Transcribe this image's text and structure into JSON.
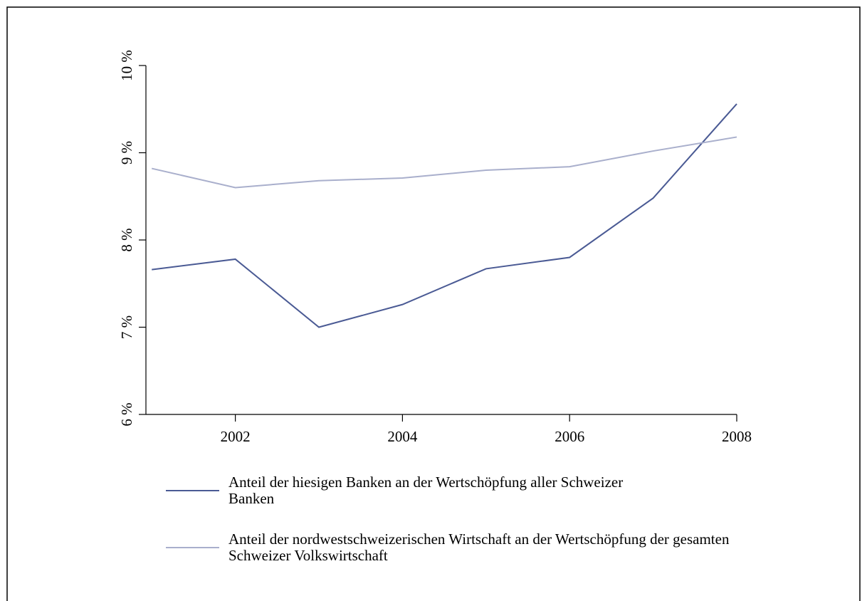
{
  "chart_data": {
    "type": "line",
    "x": [
      2001,
      2002,
      2003,
      2004,
      2005,
      2006,
      2007,
      2008
    ],
    "series": [
      {
        "name": "Anteil der hiesigen Banken an der Wertschöpfung aller Schweizer Banken",
        "color": "#4a5a94",
        "values": [
          7.66,
          7.78,
          7.0,
          7.26,
          7.67,
          7.8,
          8.48,
          9.56
        ]
      },
      {
        "name": "Anteil der nordwestschweizerischen Wirtschaft an der Wertschöpfung der gesamten Schweizer Volkswirtschaft",
        "color": "#a9afcc",
        "values": [
          8.82,
          8.6,
          8.68,
          8.71,
          8.8,
          8.84,
          9.02,
          9.18
        ]
      }
    ],
    "xlim": [
      2000.93,
      2008
    ],
    "xticks": [
      2002,
      2004,
      2006,
      2008
    ],
    "ylim": [
      6,
      10
    ],
    "yticks": [
      {
        "value": 6,
        "label": "6 %"
      },
      {
        "value": 7,
        "label": "7 %"
      },
      {
        "value": 8,
        "label": "8 %"
      },
      {
        "value": 9,
        "label": "9 %"
      },
      {
        "value": 10,
        "label": "10 %"
      }
    ]
  }
}
